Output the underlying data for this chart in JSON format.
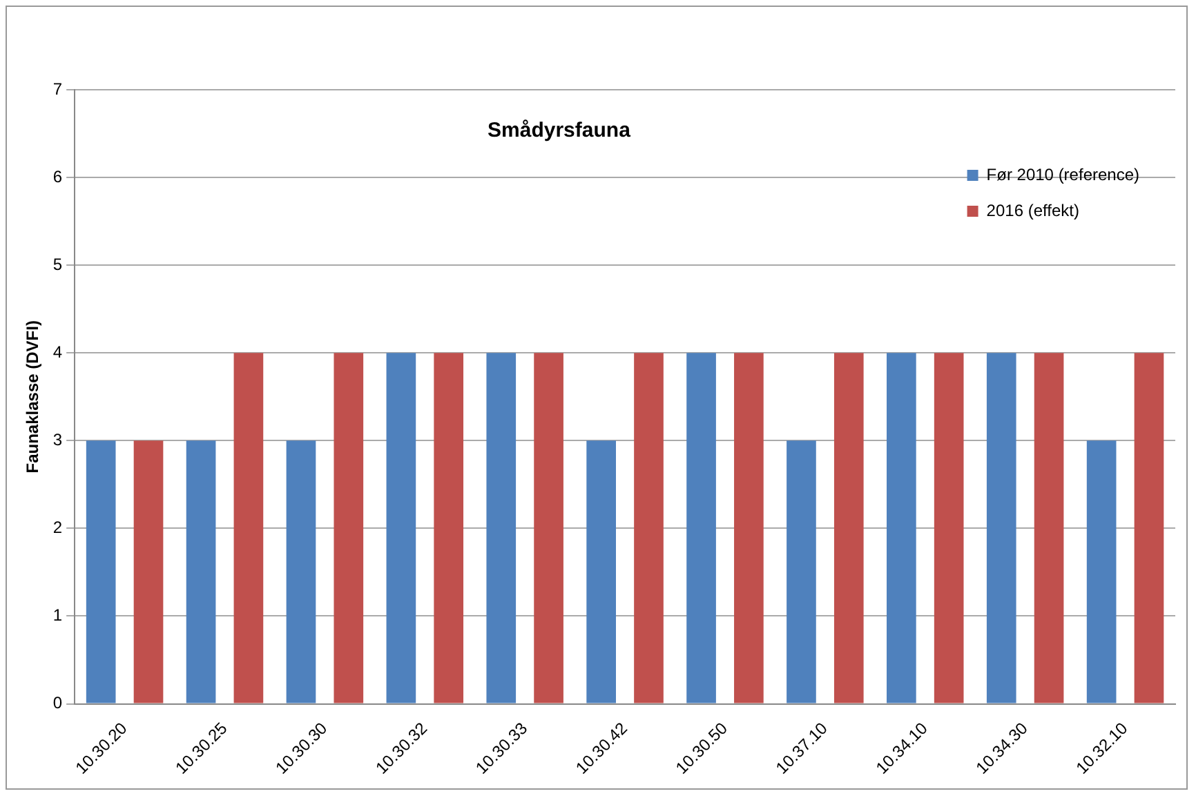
{
  "chart_data": {
    "type": "bar",
    "title": "Smådyrsfauna",
    "ylabel": "Faunaklasse (DVFI)",
    "categories": [
      "10.30.20",
      "10.30.25",
      "10.30.30",
      "10.30.32",
      "10.30.33",
      "10.30.42",
      "10.30.50",
      "10.37.10",
      "10.34.10",
      "10.34.30",
      "10.32.10"
    ],
    "series": [
      {
        "name": "Før 2010 (reference)",
        "color": "#4f81bd",
        "values": [
          3,
          3,
          3,
          4,
          4,
          3,
          4,
          3,
          4,
          4,
          3
        ]
      },
      {
        "name": "2016 (effekt)",
        "color": "#c0504d",
        "values": [
          3,
          4,
          4,
          4,
          4,
          4,
          4,
          4,
          4,
          4,
          4
        ]
      }
    ],
    "ylim": [
      0,
      7
    ],
    "yticks": [
      0,
      1,
      2,
      3,
      4,
      5,
      6,
      7
    ],
    "grid": "y",
    "legend": "top right"
  }
}
